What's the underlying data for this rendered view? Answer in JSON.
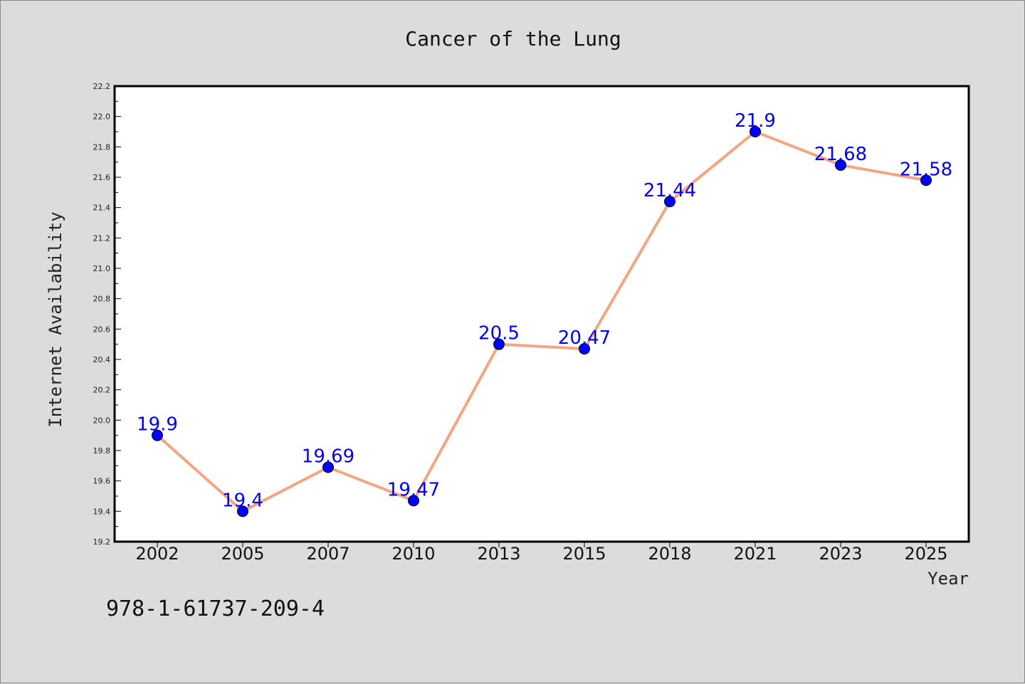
{
  "chart_data": {
    "type": "line",
    "title": "Cancer of the Lung",
    "xlabel": "Year",
    "ylabel": "Internet Availability",
    "categories": [
      "2002",
      "2005",
      "2007",
      "2010",
      "2013",
      "2015",
      "2018",
      "2021",
      "2023",
      "2025"
    ],
    "series": [
      {
        "values": [
          19.9,
          19.4,
          19.69,
          19.47,
          20.5,
          20.47,
          21.44,
          21.9,
          21.68,
          21.58
        ],
        "data_labels": [
          "19.9",
          "19.4",
          "19.69",
          "19.47",
          "20.5",
          "20.47",
          "21.44",
          "21.9",
          "21.68",
          "21.58"
        ]
      }
    ],
    "ylim": [
      19.2,
      22.2
    ],
    "yticks": [
      "19.2",
      "19.4",
      "19.6",
      "19.8",
      "20.0",
      "20.2",
      "20.4",
      "20.6",
      "20.8",
      "21.0",
      "21.2",
      "21.4",
      "21.6",
      "21.8",
      "22.0",
      "22.2"
    ],
    "grid": false,
    "legend": "none",
    "colors": {
      "line": "#f4a582",
      "marker": "#0000ff",
      "label": "#0000ff",
      "plot_bg": "#ffffff",
      "figure_bg": "#dcdcdc"
    }
  },
  "footnote": "978-1-61737-209-4"
}
